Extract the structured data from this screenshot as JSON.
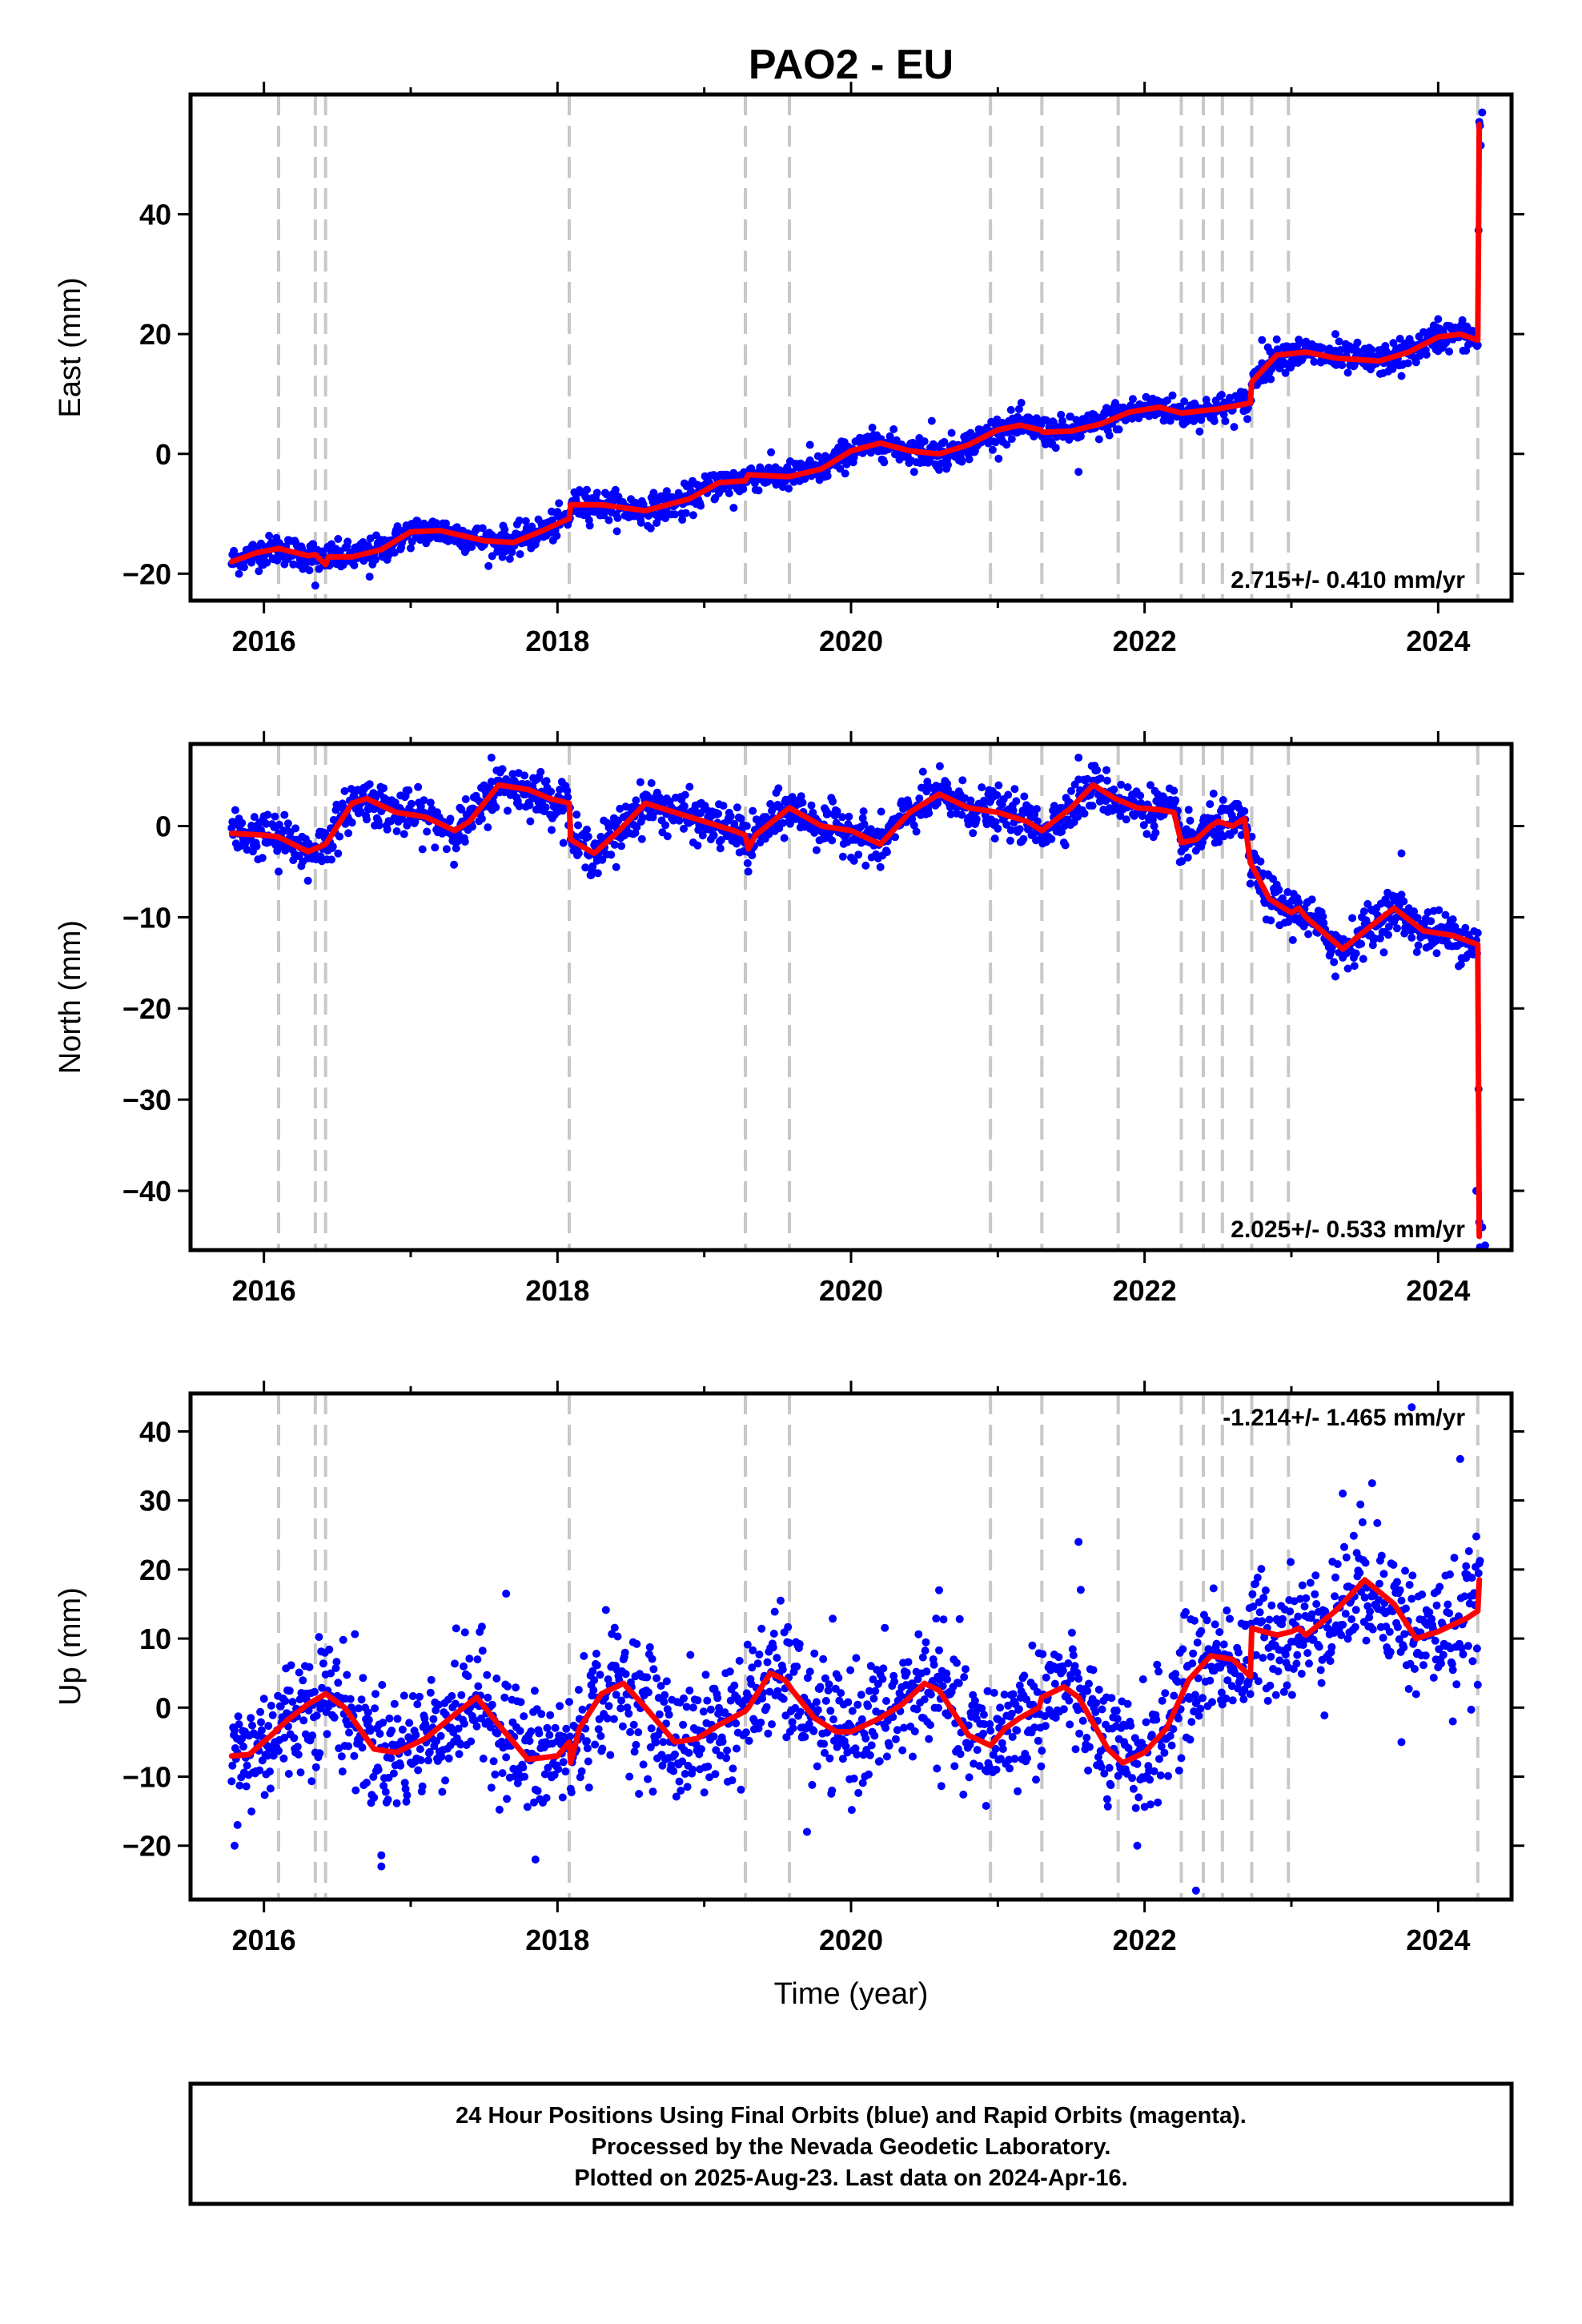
{
  "title": "PAO2 - EU",
  "colors": {
    "points": "#0000ff",
    "model": "#ff0000",
    "events": "#c8c8c8",
    "frame": "#000000"
  },
  "xlabel": "Time (year)",
  "footer": {
    "line1": "24 Hour Positions Using Final Orbits (blue) and Rapid Orbits (magenta).",
    "line2": "Processed by the Nevada Geodetic Laboratory.",
    "line3": "Plotted on 2025-Aug-23. Last data on 2024-Apr-16."
  },
  "chart_data": [
    {
      "type": "scatter",
      "component": "east",
      "ylabel": "East (mm)",
      "rate_label": "2.715+/- 0.410 mm/yr",
      "xlim": [
        2015.5,
        2024.5
      ],
      "ylim": [
        -24.5,
        60
      ],
      "xticks": [
        2016,
        2018,
        2020,
        2022,
        2024
      ],
      "yticks": [
        -20,
        0,
        20,
        40
      ],
      "data_start": 2015.78,
      "data_end": 2024.29,
      "series_points": "daily positions (blue)",
      "series_model": "model fit (red)",
      "model": [
        [
          2015.78,
          -18
        ],
        [
          2015.95,
          -16.5
        ],
        [
          2016.1,
          -15.8
        ],
        [
          2016.3,
          -17
        ],
        [
          2016.35,
          -16.8
        ],
        [
          2016.42,
          -18.5
        ],
        [
          2016.44,
          -17.2
        ],
        [
          2016.6,
          -17.2
        ],
        [
          2016.8,
          -16
        ],
        [
          2017.0,
          -13
        ],
        [
          2017.2,
          -12.8
        ],
        [
          2017.5,
          -14.5
        ],
        [
          2017.7,
          -14.8
        ],
        [
          2017.9,
          -12.8
        ],
        [
          2018.08,
          -10.8
        ],
        [
          2018.09,
          -8.5
        ],
        [
          2018.3,
          -8.5
        ],
        [
          2018.6,
          -9.5
        ],
        [
          2018.9,
          -7.5
        ],
        [
          2019.1,
          -4.8
        ],
        [
          2019.28,
          -4.5
        ],
        [
          2019.3,
          -3.5
        ],
        [
          2019.58,
          -3.8
        ],
        [
          2019.8,
          -2.5
        ],
        [
          2020.0,
          0.5
        ],
        [
          2020.2,
          1.8
        ],
        [
          2020.4,
          0.5
        ],
        [
          2020.6,
          0
        ],
        [
          2020.8,
          1.5
        ],
        [
          2021.0,
          4
        ],
        [
          2021.15,
          4.8
        ],
        [
          2021.29,
          4
        ],
        [
          2021.31,
          3.6
        ],
        [
          2021.5,
          3.8
        ],
        [
          2021.7,
          5
        ],
        [
          2021.9,
          7
        ],
        [
          2022.1,
          7.8
        ],
        [
          2022.25,
          6.8
        ],
        [
          2022.5,
          7.5
        ],
        [
          2022.72,
          8.5
        ],
        [
          2022.73,
          12
        ],
        [
          2022.9,
          16.5
        ],
        [
          2023.1,
          17
        ],
        [
          2023.3,
          16
        ],
        [
          2023.6,
          15.5
        ],
        [
          2023.8,
          17
        ],
        [
          2024.0,
          19.5
        ],
        [
          2024.15,
          20
        ],
        [
          2024.27,
          19
        ],
        [
          2024.28,
          55
        ]
      ],
      "point_samples": [
        [
          2016.72,
          -20.5
        ],
        [
          2016.35,
          -22
        ],
        [
          2017.35,
          -15.5
        ],
        [
          2018.2,
          -6
        ],
        [
          2018.85,
          -11
        ],
        [
          2019.2,
          -9
        ],
        [
          2019.72,
          1.5
        ],
        [
          2020.55,
          5.5
        ],
        [
          2020.65,
          -2.5
        ],
        [
          2021.55,
          -3
        ],
        [
          2021.8,
          8.5
        ],
        [
          2022.8,
          19
        ],
        [
          2023.3,
          20
        ],
        [
          2023.75,
          13
        ],
        [
          2024.0,
          22.5
        ],
        [
          2024.3,
          57
        ],
        [
          2024.29,
          51.5
        ]
      ],
      "noise": 1.2,
      "point_step": 0.005
    },
    {
      "type": "scatter",
      "component": "north",
      "ylabel": "North (mm)",
      "rate_label": "2.025+/- 0.533 mm/yr",
      "xlim": [
        2015.5,
        2024.5
      ],
      "ylim": [
        -46.5,
        9
      ],
      "xticks": [
        2016,
        2018,
        2020,
        2022,
        2024
      ],
      "yticks": [
        -40,
        -30,
        -20,
        -10,
        0
      ],
      "data_start": 2015.78,
      "data_end": 2024.29,
      "series_points": "daily positions (blue)",
      "series_model": "model fit (red)",
      "model": [
        [
          2015.78,
          -0.8
        ],
        [
          2016.0,
          -1
        ],
        [
          2016.1,
          -1.2
        ],
        [
          2016.3,
          -2.8
        ],
        [
          2016.42,
          -2
        ],
        [
          2016.6,
          2.5
        ],
        [
          2016.7,
          3
        ],
        [
          2016.9,
          1.5
        ],
        [
          2017.1,
          1
        ],
        [
          2017.3,
          -0.5
        ],
        [
          2017.4,
          0.5
        ],
        [
          2017.6,
          4.5
        ],
        [
          2017.8,
          4
        ],
        [
          2017.95,
          3
        ],
        [
          2018.08,
          2.5
        ],
        [
          2018.09,
          -1.5
        ],
        [
          2018.25,
          -3
        ],
        [
          2018.4,
          -0.8
        ],
        [
          2018.6,
          2.5
        ],
        [
          2018.8,
          1.5
        ],
        [
          2019.0,
          0.5
        ],
        [
          2019.2,
          -0.5
        ],
        [
          2019.28,
          -1
        ],
        [
          2019.3,
          -2.5
        ],
        [
          2019.35,
          -1
        ],
        [
          2019.58,
          2
        ],
        [
          2019.8,
          0
        ],
        [
          2020.0,
          -0.5
        ],
        [
          2020.2,
          -2
        ],
        [
          2020.4,
          1.5
        ],
        [
          2020.6,
          3.5
        ],
        [
          2020.8,
          2
        ],
        [
          2021.0,
          1.5
        ],
        [
          2021.2,
          0.5
        ],
        [
          2021.3,
          -0.5
        ],
        [
          2021.5,
          2
        ],
        [
          2021.65,
          4.5
        ],
        [
          2021.8,
          3
        ],
        [
          2021.95,
          2
        ],
        [
          2022.1,
          1.8
        ],
        [
          2022.2,
          1.5
        ],
        [
          2022.25,
          -1.8
        ],
        [
          2022.35,
          -1.5
        ],
        [
          2022.45,
          0
        ],
        [
          2022.5,
          0.5
        ],
        [
          2022.6,
          0
        ],
        [
          2022.68,
          0.8
        ],
        [
          2022.72,
          -4
        ],
        [
          2022.85,
          -8
        ],
        [
          2023.0,
          -9.5
        ],
        [
          2023.05,
          -9
        ],
        [
          2023.1,
          -10
        ],
        [
          2023.35,
          -13.5
        ],
        [
          2023.5,
          -11.5
        ],
        [
          2023.7,
          -9
        ],
        [
          2023.9,
          -11.5
        ],
        [
          2024.1,
          -12
        ],
        [
          2024.27,
          -13
        ],
        [
          2024.28,
          -45
        ]
      ],
      "point_samples": [
        [
          2016.1,
          -5
        ],
        [
          2016.3,
          -6
        ],
        [
          2018.4,
          -4.5
        ],
        [
          2019.3,
          -5
        ],
        [
          2020.2,
          -4.5
        ],
        [
          2023.3,
          -16.5
        ],
        [
          2023.75,
          -3
        ],
        [
          2024.3,
          -44
        ],
        [
          2024.32,
          -46
        ],
        [
          2024.26,
          -40
        ],
        [
          2017.55,
          7.5
        ],
        [
          2021.55,
          7.5
        ]
      ],
      "noise": 1.2,
      "point_step": 0.005
    },
    {
      "type": "scatter",
      "component": "up",
      "ylabel": "Up (mm)",
      "rate_label": "-1.214+/- 1.465 mm/yr",
      "xlim": [
        2015.5,
        2024.5
      ],
      "ylim": [
        -27.8,
        45.5
      ],
      "xticks": [
        2016,
        2018,
        2020,
        2022,
        2024
      ],
      "yticks": [
        -20,
        -10,
        0,
        10,
        20,
        30,
        40
      ],
      "data_start": 2015.78,
      "data_end": 2024.29,
      "series_points": "daily positions (blue)",
      "series_model": "model fit (red)",
      "model": [
        [
          2015.78,
          -7
        ],
        [
          2015.9,
          -6.8
        ],
        [
          2016.05,
          -4
        ],
        [
          2016.15,
          -2
        ],
        [
          2016.3,
          0.5
        ],
        [
          2016.42,
          2
        ],
        [
          2016.55,
          0
        ],
        [
          2016.75,
          -6
        ],
        [
          2016.9,
          -6.5
        ],
        [
          2017.1,
          -4.5
        ],
        [
          2017.3,
          -1
        ],
        [
          2017.45,
          1.5
        ],
        [
          2017.6,
          -2.5
        ],
        [
          2017.8,
          -7.5
        ],
        [
          2018.0,
          -7
        ],
        [
          2018.08,
          -5
        ],
        [
          2018.09,
          -8
        ],
        [
          2018.15,
          -3
        ],
        [
          2018.3,
          2
        ],
        [
          2018.45,
          3.5
        ],
        [
          2018.6,
          0
        ],
        [
          2018.8,
          -5
        ],
        [
          2018.95,
          -4.5
        ],
        [
          2019.1,
          -2.5
        ],
        [
          2019.28,
          -0.5
        ],
        [
          2019.3,
          0
        ],
        [
          2019.45,
          5
        ],
        [
          2019.55,
          4
        ],
        [
          2019.6,
          2.5
        ],
        [
          2019.75,
          -1.5
        ],
        [
          2019.9,
          -3.5
        ],
        [
          2020.0,
          -3.5
        ],
        [
          2020.2,
          -1.5
        ],
        [
          2020.35,
          0.5
        ],
        [
          2020.5,
          3.5
        ],
        [
          2020.6,
          2.5
        ],
        [
          2020.8,
          -4
        ],
        [
          2020.95,
          -5.5
        ],
        [
          2021.05,
          -3
        ],
        [
          2021.15,
          -1.5
        ],
        [
          2021.28,
          0
        ],
        [
          2021.3,
          1.5
        ],
        [
          2021.45,
          3
        ],
        [
          2021.55,
          1.5
        ],
        [
          2021.75,
          -6
        ],
        [
          2021.85,
          -8
        ],
        [
          2022.0,
          -6.5
        ],
        [
          2022.15,
          -3
        ],
        [
          2022.3,
          4
        ],
        [
          2022.45,
          7.5
        ],
        [
          2022.6,
          7
        ],
        [
          2022.72,
          4.5
        ],
        [
          2022.73,
          11.5
        ],
        [
          2022.9,
          10.5
        ],
        [
          2023.0,
          11
        ],
        [
          2023.05,
          11.5
        ],
        [
          2023.1,
          10.5
        ],
        [
          2023.3,
          14
        ],
        [
          2023.5,
          18.5
        ],
        [
          2023.7,
          15
        ],
        [
          2023.85,
          10
        ],
        [
          2024.0,
          11
        ],
        [
          2024.2,
          13
        ],
        [
          2024.27,
          14
        ],
        [
          2024.28,
          18.5
        ]
      ],
      "point_samples": [
        [
          2015.8,
          -20
        ],
        [
          2015.82,
          -17
        ],
        [
          2016.8,
          -23
        ],
        [
          2017.65,
          16.5
        ],
        [
          2017.85,
          -22
        ],
        [
          2019.7,
          -18
        ],
        [
          2020.6,
          17
        ],
        [
          2021.55,
          24
        ],
        [
          2021.95,
          -20
        ],
        [
          2022.35,
          -26.5
        ],
        [
          2023.35,
          31
        ],
        [
          2023.55,
          32.5
        ],
        [
          2023.82,
          43.5
        ],
        [
          2024.15,
          36
        ],
        [
          2024.1,
          -2
        ],
        [
          2023.75,
          -5
        ]
      ],
      "noise": 4.5,
      "point_step": 0.005
    }
  ],
  "event_lines": [
    2016.1,
    2016.35,
    2016.42,
    2018.08,
    2019.28,
    2019.58,
    2020.95,
    2021.3,
    2021.82,
    2022.25,
    2022.4,
    2022.53,
    2022.73,
    2022.98,
    2024.27
  ]
}
